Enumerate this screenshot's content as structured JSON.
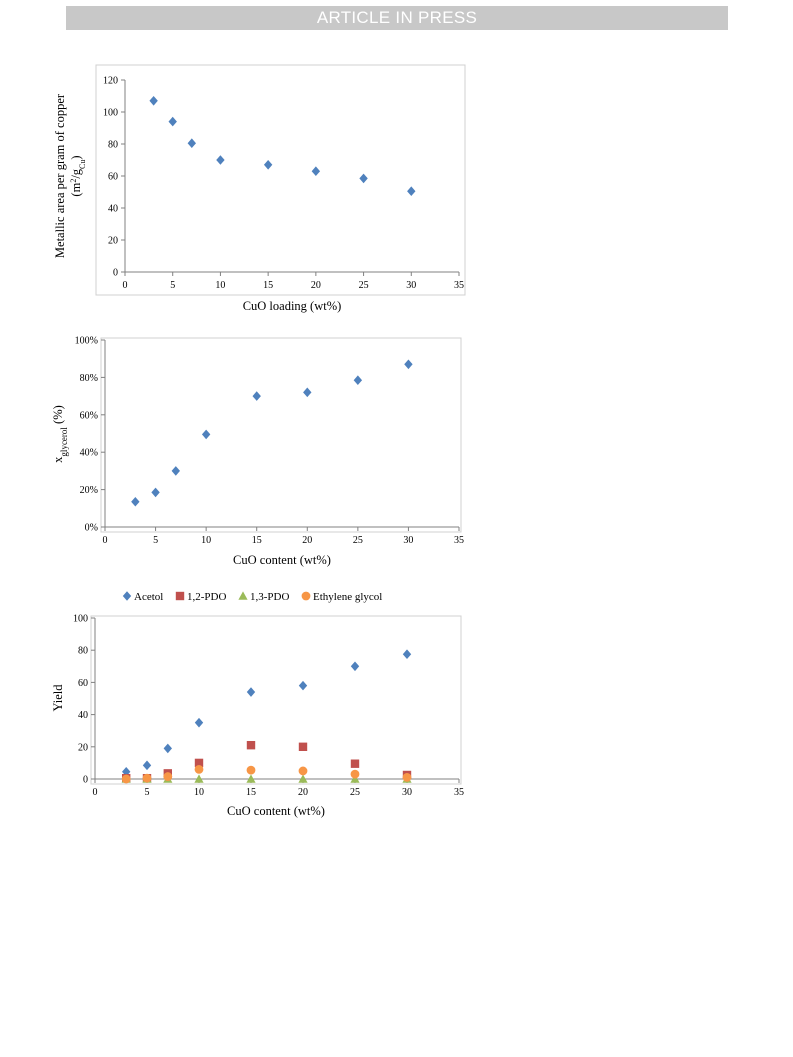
{
  "banner": {
    "text": "ARTICLE IN PRESS",
    "color": "#c8c8c8"
  },
  "chart_data": [
    {
      "type": "scatter",
      "title": "",
      "xlabel": "CuO loading  (wt%)",
      "ylabel": "Metallic  area per gram  of copper",
      "ylabel2": "(m²/gCu)",
      "xlim": [
        0,
        35
      ],
      "ylim": [
        0,
        120
      ],
      "xticks": [
        "0",
        "5",
        "10",
        "15",
        "20",
        "25",
        "30",
        "35"
      ],
      "yticks": [
        "0",
        "20",
        "40",
        "60",
        "80",
        "100",
        "120"
      ],
      "grid": false,
      "series": [
        {
          "marker": "diamond",
          "color": "#4f81bd",
          "x": [
            3,
            5,
            7,
            10,
            15,
            20,
            25,
            30
          ],
          "y": [
            107,
            94,
            80.5,
            70,
            67,
            63,
            58.5,
            50.5
          ]
        }
      ]
    },
    {
      "type": "scatter",
      "title": "",
      "xlabel": "CuO content  (wt%)",
      "ylabel": "xglycerol (%)",
      "xlim": [
        0,
        35
      ],
      "ylim": [
        0,
        100
      ],
      "xticks": [
        "0",
        "5",
        "10",
        "15",
        "20",
        "25",
        "30",
        "35"
      ],
      "yticks": [
        "0%",
        "20%",
        "40%",
        "60%",
        "80%",
        "100%"
      ],
      "grid": false,
      "series": [
        {
          "marker": "diamond",
          "color": "#4f81bd",
          "x": [
            3,
            5,
            7,
            10,
            15,
            20,
            25,
            30
          ],
          "y": [
            13.5,
            18.5,
            30,
            49.5,
            70,
            72,
            78.5,
            87
          ]
        }
      ]
    },
    {
      "type": "scatter",
      "title": "",
      "xlabel": "CuO content  (wt%)",
      "ylabel": "Yield",
      "xlim": [
        0,
        35
      ],
      "ylim": [
        0,
        100
      ],
      "xticks": [
        "0",
        "5",
        "10",
        "15",
        "20",
        "25",
        "30",
        "35"
      ],
      "yticks": [
        "0",
        "20",
        "40",
        "60",
        "80",
        "100"
      ],
      "grid": false,
      "legend": "top",
      "series": [
        {
          "name": "Acetol",
          "marker": "diamond",
          "color": "#4f81bd",
          "x": [
            3,
            5,
            7,
            10,
            15,
            20,
            25,
            30
          ],
          "y": [
            4.5,
            8.5,
            19,
            35,
            54,
            58,
            70,
            77.5
          ]
        },
        {
          "name": "1,2-PDO",
          "marker": "square",
          "color": "#c0504d",
          "x": [
            3,
            5,
            7,
            10,
            15,
            20,
            25,
            30
          ],
          "y": [
            0.5,
            0.5,
            3.5,
            10,
            21,
            20,
            9.5,
            2.5
          ]
        },
        {
          "name": "1,3-PDO",
          "marker": "triangle",
          "color": "#9bbb59",
          "x": [
            3,
            5,
            7,
            10,
            15,
            20,
            25,
            30
          ],
          "y": [
            0,
            0,
            0,
            0,
            0,
            0,
            0,
            0
          ]
        },
        {
          "name": "Ethylene glycol",
          "marker": "circle",
          "color": "#f79646",
          "x": [
            3,
            5,
            7,
            10,
            15,
            20,
            25,
            30
          ],
          "y": [
            0,
            0.5,
            1.5,
            6,
            5.5,
            5,
            3,
            1
          ]
        }
      ]
    }
  ]
}
